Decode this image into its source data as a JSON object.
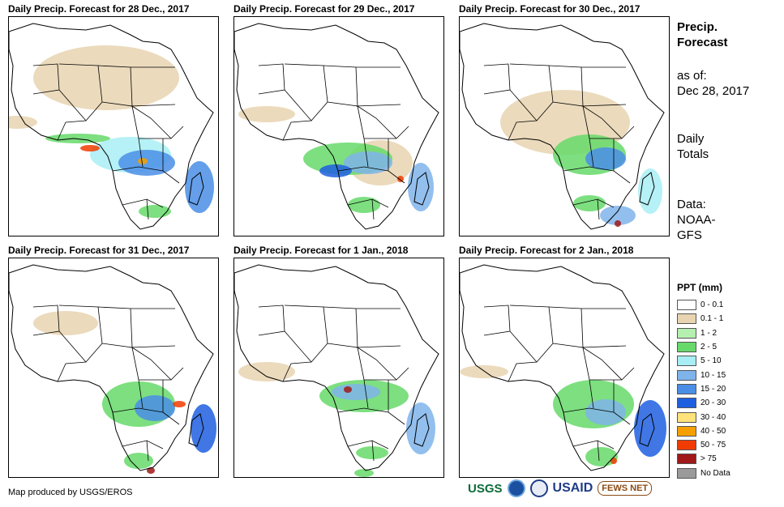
{
  "panels": [
    {
      "title": "Daily Precip. Forecast for 28 Dec., 2017"
    },
    {
      "title": "Daily Precip. Forecast for 29 Dec., 2017"
    },
    {
      "title": "Daily Precip. Forecast for 30 Dec., 2017"
    },
    {
      "title": "Daily Precip. Forecast for 31 Dec., 2017"
    },
    {
      "title": "Daily Precip. Forecast for 1 Jan., 2018"
    },
    {
      "title": "Daily Precip. Forecast for 2 Jan., 2018"
    }
  ],
  "sidebar": {
    "title_line1": "Precip.",
    "title_line2": "Forecast",
    "asof_label": "as of:",
    "asof_date": "Dec 28, 2017",
    "totals_line1": "Daily",
    "totals_line2": "Totals",
    "data_label": "Data:",
    "data_line1": "NOAA-",
    "data_line2": "GFS"
  },
  "legend": {
    "title": "PPT (mm)",
    "items": [
      {
        "label": "0 - 0.1",
        "color": "#ffffff"
      },
      {
        "label": "0.1 - 1",
        "color": "#e8d4b0"
      },
      {
        "label": "1 - 2",
        "color": "#b6f0b0"
      },
      {
        "label": "2 - 5",
        "color": "#66d96a"
      },
      {
        "label": "5 - 10",
        "color": "#a8eef4"
      },
      {
        "label": "10 - 15",
        "color": "#7fb4ea"
      },
      {
        "label": "15 - 20",
        "color": "#4a8ee6"
      },
      {
        "label": "20 - 30",
        "color": "#1e5fe0"
      },
      {
        "label": "30 - 40",
        "color": "#ffe27a"
      },
      {
        "label": "40 - 50",
        "color": "#f5a000"
      },
      {
        "label": "50 - 75",
        "color": "#f03c00"
      },
      {
        "label": "> 75",
        "color": "#a01818"
      },
      {
        "label": "No Data",
        "color": "#9a9a9a"
      }
    ]
  },
  "footer": {
    "credit": "Map produced by USGS/EROS",
    "logos": [
      "USGS",
      "NOAA",
      "USAID",
      "FEWS NET"
    ]
  }
}
